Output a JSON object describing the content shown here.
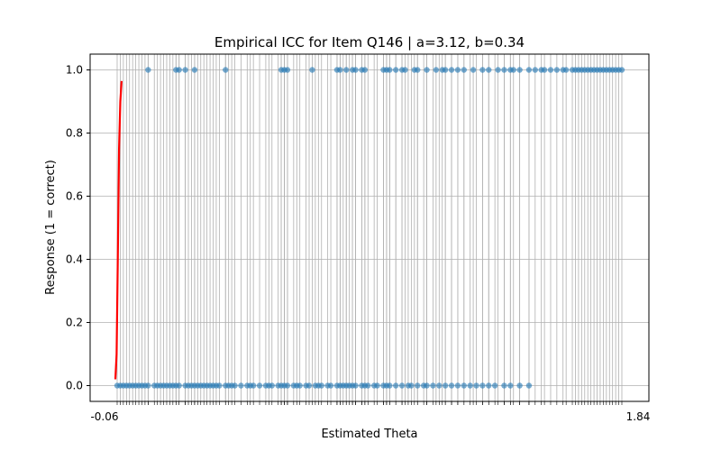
{
  "chart_data": {
    "type": "scatter",
    "title": "Empirical ICC for Item Q146 | a=3.12, b=0.34",
    "xlabel": "Estimated Theta",
    "ylabel": "Response (1 = correct)",
    "xlim": [
      -0.06,
      1.84
    ],
    "ylim": [
      -0.05,
      1.05
    ],
    "yticks": [
      0.0,
      0.2,
      0.4,
      0.6,
      0.8,
      1.0
    ],
    "ytick_labels": [
      "0.0",
      "0.2",
      "0.4",
      "0.6",
      "0.8",
      "1.0"
    ],
    "x_tick_first_label": "-0.06",
    "x_tick_last_label": "1.84",
    "grid": true,
    "colors": {
      "points": "#1f77b4",
      "curve": "#ff0000",
      "grid": "#b0b0b0"
    },
    "points_incorrect_x": [
      0.0,
      0.01,
      0.02,
      0.03,
      0.04,
      0.05,
      0.06,
      0.07,
      0.08,
      0.09,
      0.1,
      0.12,
      0.13,
      0.14,
      0.15,
      0.16,
      0.17,
      0.18,
      0.19,
      0.2,
      0.22,
      0.23,
      0.24,
      0.25,
      0.26,
      0.27,
      0.28,
      0.29,
      0.3,
      0.31,
      0.32,
      0.33,
      0.35,
      0.36,
      0.37,
      0.38,
      0.4,
      0.42,
      0.43,
      0.44,
      0.46,
      0.48,
      0.49,
      0.5,
      0.52,
      0.53,
      0.54,
      0.55,
      0.57,
      0.58,
      0.59,
      0.61,
      0.62,
      0.64,
      0.65,
      0.66,
      0.68,
      0.69,
      0.71,
      0.72,
      0.73,
      0.74,
      0.75,
      0.76,
      0.77,
      0.79,
      0.8,
      0.81,
      0.83,
      0.84,
      0.86,
      0.87,
      0.88,
      0.9,
      0.92,
      0.94,
      0.95,
      0.97,
      0.99,
      1.0,
      1.02,
      1.04,
      1.06,
      1.08,
      1.1,
      1.12,
      1.14,
      1.16,
      1.18,
      1.2,
      1.22,
      1.25,
      1.27,
      1.3,
      1.33
    ],
    "points_correct_x": [
      0.1,
      0.19,
      0.2,
      0.22,
      0.25,
      0.35,
      0.53,
      0.54,
      0.55,
      0.63,
      0.71,
      0.72,
      0.74,
      0.76,
      0.77,
      0.79,
      0.8,
      0.86,
      0.87,
      0.88,
      0.9,
      0.92,
      0.93,
      0.96,
      0.97,
      1.0,
      1.03,
      1.05,
      1.06,
      1.08,
      1.1,
      1.12,
      1.15,
      1.18,
      1.2,
      1.23,
      1.25,
      1.27,
      1.28,
      1.3,
      1.33,
      1.35,
      1.37,
      1.38,
      1.4,
      1.42,
      1.44,
      1.45,
      1.47,
      1.48,
      1.49,
      1.5,
      1.51,
      1.52,
      1.53,
      1.54,
      1.55,
      1.56,
      1.57,
      1.58,
      1.59,
      1.6,
      1.61,
      1.62,
      1.63
    ],
    "icc_curve": {
      "x": [
        0.0,
        0.004,
        0.008,
        0.012,
        0.016,
        0.02
      ],
      "y": [
        0.02,
        0.1,
        0.4,
        0.75,
        0.9,
        0.965
      ]
    }
  }
}
